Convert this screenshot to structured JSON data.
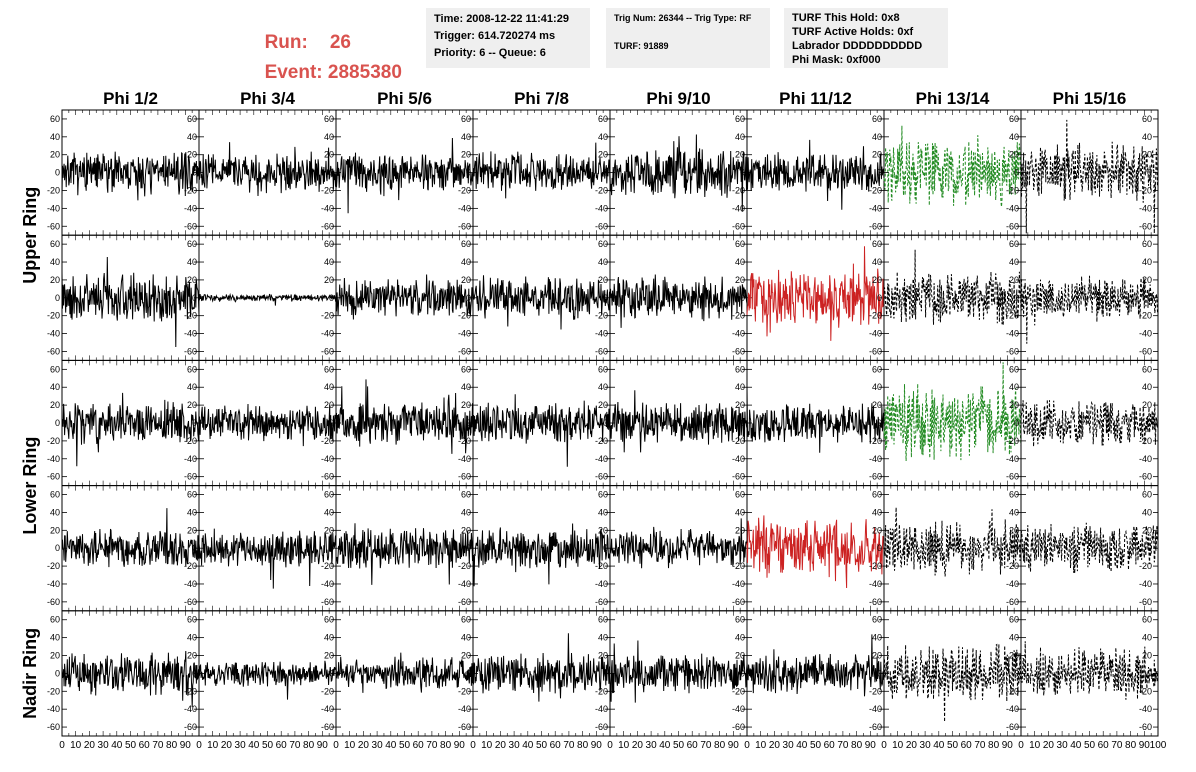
{
  "header": {
    "run_label": "Run:",
    "run_value": "26",
    "event_label": "Event:",
    "event_value": "2885380",
    "run_color": "#d9534f"
  },
  "info_box_1": {
    "time": "Time: 2008-12-22 11:41:29",
    "trigger": "Trigger: 614.720274 ms",
    "priority": "Priority: 6 -- Queue: 6"
  },
  "info_box_2": {
    "trig": "Trig Num: 26344 -- Trig Type: RF",
    "turf": "TURF: 91889"
  },
  "info_box_3": {
    "hold": "TURF This Hold: 0x8",
    "active": "TURF Active Holds: 0xf",
    "labrador": "Labrador DDDDDDDDDD",
    "phimask": "Phi Mask: 0xf000"
  },
  "chart_data": {
    "type": "line",
    "title": "",
    "columns": [
      "Phi 1/2",
      "Phi 3/4",
      "Phi 5/6",
      "Phi 7/8",
      "Phi 9/10",
      "Phi 11/12",
      "Phi 13/14",
      "Phi 15/16"
    ],
    "ring_labels": [
      "Upper Ring",
      "Lower Ring",
      "Nadir Ring"
    ],
    "rows_per_ring": [
      2,
      2,
      1
    ],
    "xlim": [
      0,
      100
    ],
    "ylim": [
      -70,
      70
    ],
    "x_tick_labels": [
      "0",
      "10",
      "20",
      "30",
      "40",
      "50",
      "60",
      "70",
      "80",
      "90",
      "100"
    ],
    "y_tick_labels": [
      "60",
      "40",
      "20",
      "0",
      "-20",
      "-40",
      "-60"
    ],
    "colors": {
      "normal": "#000000",
      "triggered": "#cc2222",
      "phimask": "#228b22"
    },
    "panels": [
      [
        "solid:normal:18",
        "solid:normal:16",
        "solid:normal:16",
        "solid:normal:16",
        "solid:normal:20",
        "solid:normal:16",
        "dashed:phimask:28",
        "dashed:normal:25"
      ],
      [
        "solid:normal:20",
        "solid:normal:3",
        "solid:normal:16",
        "solid:normal:18",
        "solid:normal:18",
        "solid:triggered:24",
        "dashed:normal:22",
        "dashed:normal:18"
      ],
      [
        "solid:normal:18",
        "solid:normal:15",
        "solid:normal:18",
        "solid:normal:17",
        "solid:normal:17",
        "solid:normal:16",
        "dashed:phimask:30",
        "dashed:normal:20"
      ],
      [
        "solid:normal:16",
        "solid:normal:15",
        "solid:normal:17",
        "solid:normal:16",
        "solid:normal:15",
        "solid:triggered:24",
        "dashed:normal:22",
        "dashed:normal:20"
      ],
      [
        "solid:normal:18",
        "solid:normal:10",
        "solid:normal:13",
        "solid:normal:16",
        "solid:normal:16",
        "solid:normal:16",
        "dashed:normal:24",
        "dashed:normal:22"
      ]
    ]
  }
}
